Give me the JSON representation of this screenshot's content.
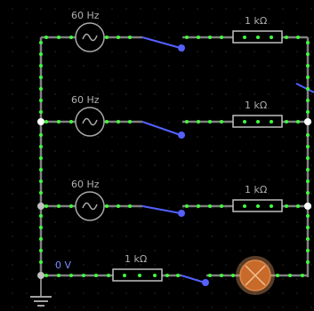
{
  "circuit": {
    "ground_label": "0 V",
    "branches": [
      {
        "source_label": "60 Hz",
        "resistor_label": "1 kΩ"
      },
      {
        "source_label": "60 Hz",
        "resistor_label": "1 kΩ"
      },
      {
        "source_label": "60 Hz",
        "resistor_label": "1 kΩ"
      }
    ],
    "bottom_resistor_label": "1 kΩ"
  },
  "colors": {
    "background": "#000000",
    "grid_dot": "#2a2a2a",
    "wire": "#808080",
    "wire_highlight": "#3fff3f",
    "switch": "#5560ff",
    "lamp_fill": "#c86a2a",
    "lamp_glow": "#ffb070"
  }
}
